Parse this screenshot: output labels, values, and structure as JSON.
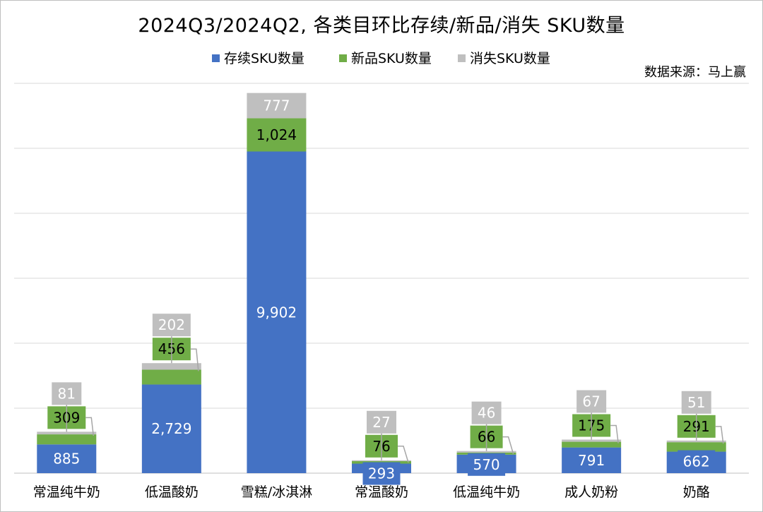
{
  "title": "2024Q3/2024Q2, 各类目环比存续/新品/消失 SKU数量",
  "source": "数据来源：马上赢",
  "colors": {
    "continued": "#4472C4",
    "new": "#70AD47",
    "lost": "#BFBFBF",
    "label_box_new": "#70AD47",
    "label_box_lost": "#BFBFBF"
  },
  "chart_data": {
    "type": "bar",
    "stacked": true,
    "categories": [
      "常温纯牛奶",
      "低温酸奶",
      "雪糕/冰淇淋",
      "常温酸奶",
      "低温纯牛奶",
      "成人奶粉",
      "奶酪"
    ],
    "series": [
      {
        "name": "存续SKU数量",
        "values": [
          885,
          2729,
          9902,
          293,
          570,
          791,
          662
        ],
        "labels": [
          "885",
          "2,729",
          "9,902",
          "293",
          "570",
          "791",
          "662"
        ]
      },
      {
        "name": "新品SKU数量",
        "values": [
          309,
          456,
          1024,
          76,
          66,
          175,
          291
        ],
        "labels": [
          "309",
          "456",
          "1,024",
          "76",
          "66",
          "175",
          "291"
        ]
      },
      {
        "name": "消失SKU数量",
        "values": [
          81,
          202,
          777,
          27,
          46,
          67,
          51
        ],
        "labels": [
          "81",
          "202",
          "777",
          "27",
          "46",
          "67",
          "51"
        ]
      }
    ],
    "ylim": [
      0,
      12000
    ],
    "grid": true,
    "legend_position": "top"
  }
}
